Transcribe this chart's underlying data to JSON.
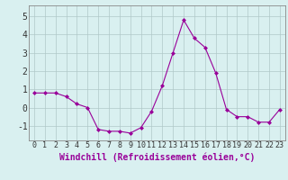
{
  "x": [
    0,
    1,
    2,
    3,
    4,
    5,
    6,
    7,
    8,
    9,
    10,
    11,
    12,
    13,
    14,
    15,
    16,
    17,
    18,
    19,
    20,
    21,
    22,
    23
  ],
  "y": [
    0.8,
    0.8,
    0.8,
    0.6,
    0.2,
    0.0,
    -1.2,
    -1.3,
    -1.3,
    -1.4,
    -1.1,
    -0.2,
    1.2,
    3.0,
    4.8,
    3.8,
    3.3,
    1.9,
    -0.1,
    -0.5,
    -0.5,
    -0.8,
    -0.8,
    -0.1
  ],
  "line_color": "#990099",
  "marker": "D",
  "marker_size": 2,
  "bg_color": "#d9f0f0",
  "grid_color": "#b0c8c8",
  "xlabel": "Windchill (Refroidissement éolien,°C)",
  "ylabel_ticks": [
    -1,
    0,
    1,
    2,
    3,
    4,
    5
  ],
  "xlim": [
    -0.5,
    23.5
  ],
  "ylim": [
    -1.8,
    5.6
  ],
  "xlabel_fontsize": 7,
  "tick_fontsize": 7
}
